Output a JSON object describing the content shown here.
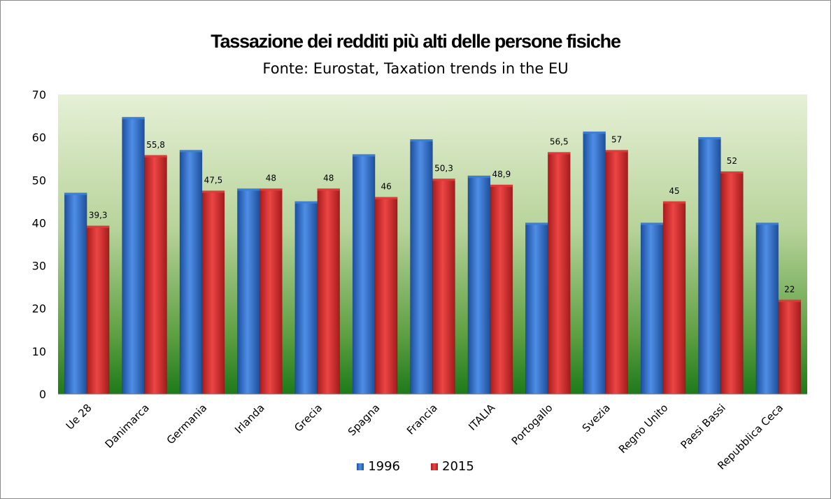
{
  "chart_data": {
    "type": "bar",
    "title": "Tassazione dei redditi più alti delle persone fisiche",
    "subtitle": "Fonte: Eurostat, Taxation trends in the EU",
    "categories": [
      "Ue 28",
      "Danimarca",
      "Germania",
      "Irlanda",
      "Grecia",
      "Spagna",
      "Francia",
      "ITALIA",
      "Portogallo",
      "Svezia",
      "Regno Unito",
      "Paesi Bassi",
      "Repubblica Ceca"
    ],
    "series": [
      {
        "name": "1996",
        "color": "#2f6fd0",
        "values": [
          47,
          64.7,
          57,
          48,
          45,
          56,
          59.5,
          51,
          40,
          61.3,
          40,
          60,
          40
        ],
        "labels": [
          "",
          "",
          "",
          "",
          "",
          "",
          "",
          "",
          "",
          "",
          "",
          "",
          ""
        ]
      },
      {
        "name": "2015",
        "color": "#d92c2c",
        "values": [
          39.3,
          55.8,
          47.5,
          48,
          48,
          46,
          50.3,
          48.9,
          56.5,
          57,
          45,
          52,
          22
        ],
        "labels": [
          "39,3",
          "55,8",
          "47,5",
          "48",
          "48",
          "46",
          "50,3",
          "48,9",
          "56,5",
          "57",
          "45",
          "52",
          "22"
        ]
      }
    ],
    "yticks": [
      "0",
      "10",
      "20",
      "30",
      "40",
      "50",
      "60",
      "70"
    ],
    "ylim": [
      0,
      70
    ],
    "grid": false,
    "legend_position": "bottom",
    "plot_background": "gradient light green to dark green"
  }
}
